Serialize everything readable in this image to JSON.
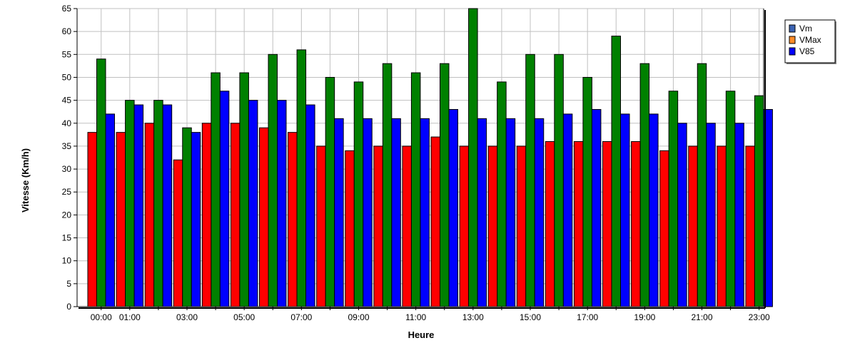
{
  "chart_data": {
    "type": "bar",
    "xlabel": "Heure",
    "ylabel": "Vitesse (Km/h)",
    "ylim": [
      0,
      65
    ],
    "yticks": [
      0,
      5,
      10,
      15,
      20,
      25,
      30,
      35,
      40,
      45,
      50,
      55,
      60,
      65
    ],
    "grid": true,
    "legend_position": "top-right",
    "legend": [
      {
        "name": "Vm",
        "color": "#3c64b4"
      },
      {
        "name": "VMax",
        "color": "#ff8c28"
      },
      {
        "name": "V85",
        "color": "#0000ff"
      }
    ],
    "categories": [
      "00:00",
      "01:00",
      "02:00",
      "03:00",
      "04:00",
      "05:00",
      "06:00",
      "07:00",
      "08:00",
      "09:00",
      "10:00",
      "11:00",
      "12:00",
      "13:00",
      "14:00",
      "15:00",
      "16:00",
      "17:00",
      "18:00",
      "19:00",
      "20:00",
      "21:00",
      "22:00",
      "23:00"
    ],
    "tick_labels": [
      "00:00",
      "01:00",
      "03:00",
      "05:00",
      "07:00",
      "09:00",
      "11:00",
      "13:00",
      "15:00",
      "17:00",
      "19:00",
      "21:00",
      "23:00"
    ],
    "series": [
      {
        "color": "#ff0000",
        "values": [
          38,
          38,
          40,
          32,
          40,
          40,
          39,
          38,
          35,
          34,
          35,
          35,
          37,
          35,
          35,
          35,
          36,
          36,
          36,
          36,
          34,
          35,
          35,
          35
        ]
      },
      {
        "color": "#008000",
        "values": [
          54,
          45,
          45,
          39,
          51,
          51,
          55,
          56,
          50,
          49,
          53,
          51,
          53,
          65,
          49,
          55,
          55,
          50,
          59,
          53,
          47,
          53,
          47,
          46
        ]
      },
      {
        "color": "#0000ff",
        "values": [
          42,
          44,
          44,
          38,
          47,
          45,
          45,
          44,
          41,
          41,
          41,
          41,
          43,
          41,
          41,
          41,
          42,
          43,
          42,
          42,
          40,
          40,
          40,
          43
        ]
      }
    ]
  }
}
